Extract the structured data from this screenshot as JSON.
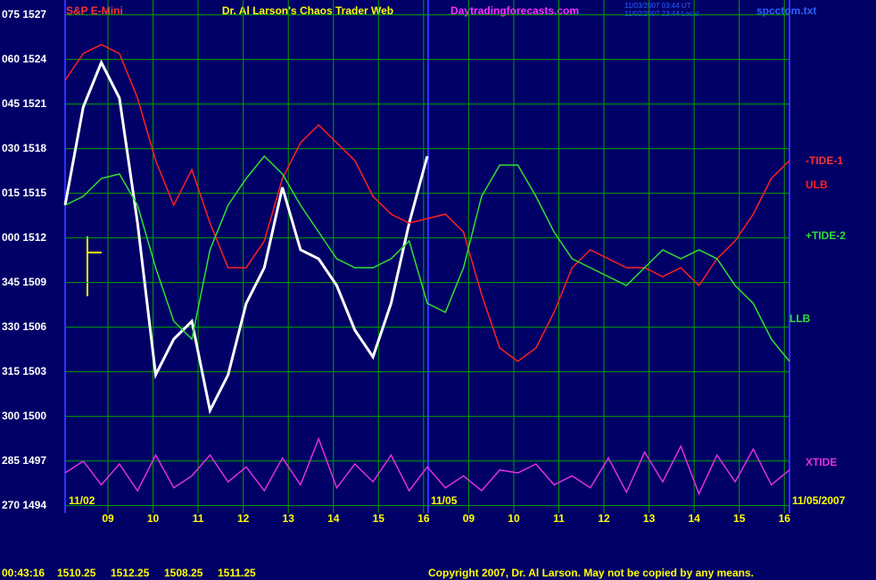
{
  "chart_data": {
    "type": "line",
    "title": "Dr. Al Larson's Chaos Trader Web",
    "symbol": "S&P E-Mini",
    "site": "Daytradingforecasts.com",
    "file": "spcctom.txt",
    "timestamps": [
      "11/03/2007 03:44 UT",
      "11/02/2007 23:44 Local"
    ],
    "date_labels": [
      "11/02",
      "11/05",
      "11/05/2007"
    ],
    "annotations": [
      "-TIDE-1",
      "LLB"
    ],
    "status": {
      "time": "00:43:16",
      "ohlc": [
        1510.25,
        1512.25,
        1508.25,
        1511.25
      ]
    },
    "copyright": "Copyright 2007, Dr. Al Larson. May not be copied by any means.",
    "xticks": [
      "09",
      "10",
      "11",
      "12",
      "13",
      "14",
      "15",
      "16",
      "09",
      "10",
      "11",
      "12",
      "13",
      "14",
      "15",
      "16"
    ],
    "ylim": [
      1493.5,
      1528
    ],
    "yticks": [
      {
        "value": 1527,
        "label": "075 1527"
      },
      {
        "value": 1524,
        "label": "060 1524"
      },
      {
        "value": 1521,
        "label": "045 1521"
      },
      {
        "value": 1518,
        "label": "030 1518"
      },
      {
        "value": 1515,
        "label": "015 1515"
      },
      {
        "value": 1512,
        "label": "000 1512"
      },
      {
        "value": 1509,
        "label": "345 1509"
      },
      {
        "value": 1506,
        "label": "330 1506"
      },
      {
        "value": 1503,
        "label": "315 1503"
      },
      {
        "value": 1500,
        "label": "300 1500"
      },
      {
        "value": 1497,
        "label": "285 1497"
      },
      {
        "value": 1494,
        "label": "270 1494"
      }
    ],
    "grid": true,
    "series": [
      {
        "color": "#ffffff",
        "values": [
          1514.2,
          1520.8,
          1523.8,
          1521.4,
          1513.0,
          1502.8,
          1505.2,
          1506.4,
          1500.4,
          1502.8,
          1507.6,
          1510.0,
          1515.4,
          1511.2,
          1510.6,
          1508.8,
          1505.8,
          1504.0,
          1507.6,
          1513.0,
          1517.5,
          null,
          null,
          null,
          null,
          null,
          null,
          null,
          null,
          null,
          null,
          null,
          null,
          null,
          null,
          null,
          null,
          null,
          null,
          null,
          null
        ]
      },
      {
        "name": "ULB",
        "color": "#ff2020",
        "values": [
          1522.6,
          1524.4,
          1525.0,
          1524.4,
          1521.4,
          1517.2,
          1514.2,
          1516.6,
          1513.0,
          1510.0,
          1510.0,
          1511.8,
          1516.0,
          1518.4,
          1519.6,
          1518.4,
          1517.2,
          1514.8,
          1513.6,
          1513.0,
          1513.3,
          1513.6,
          1512.4,
          1508.2,
          1504.6,
          1503.7,
          1504.6,
          1507.0,
          1510.0,
          1511.2,
          1510.6,
          1510.0,
          1510.0,
          1509.4,
          1510.0,
          1508.8,
          1510.6,
          1511.8,
          1513.6,
          1516.0,
          1517.2
        ]
      },
      {
        "name": "+TIDE-2",
        "color": "#30e030",
        "values": [
          1514.2,
          1514.8,
          1516.0,
          1516.3,
          1514.2,
          1510.0,
          1506.4,
          1505.2,
          1511.2,
          1514.2,
          1516.0,
          1517.5,
          1516.3,
          1514.2,
          1512.4,
          1510.6,
          1510.0,
          1510.0,
          1510.6,
          1511.8,
          1507.6,
          1507.0,
          1510.0,
          1514.8,
          1516.9,
          1516.9,
          1514.8,
          1512.4,
          1510.6,
          1510.0,
          1509.4,
          1508.8,
          1510.0,
          1511.2,
          1510.6,
          1511.2,
          1510.6,
          1508.8,
          1507.6,
          1505.2,
          1503.7
        ]
      },
      {
        "name": "XTIDE",
        "color": "#e030e0",
        "values": [
          1496.2,
          1497.0,
          1495.4,
          1496.8,
          1495.0,
          1497.4,
          1495.2,
          1496.0,
          1497.4,
          1495.6,
          1496.6,
          1495.0,
          1497.2,
          1495.4,
          1498.5,
          1495.2,
          1496.8,
          1495.6,
          1497.4,
          1495.0,
          1496.6,
          1495.2,
          1496.0,
          1495.0,
          1496.4,
          1496.2,
          1496.8,
          1495.4,
          1496.0,
          1495.2,
          1497.2,
          1494.9,
          1497.6,
          1495.6,
          1498.0,
          1494.8,
          1497.4,
          1495.6,
          1497.8,
          1495.4,
          1496.4
        ]
      }
    ]
  }
}
